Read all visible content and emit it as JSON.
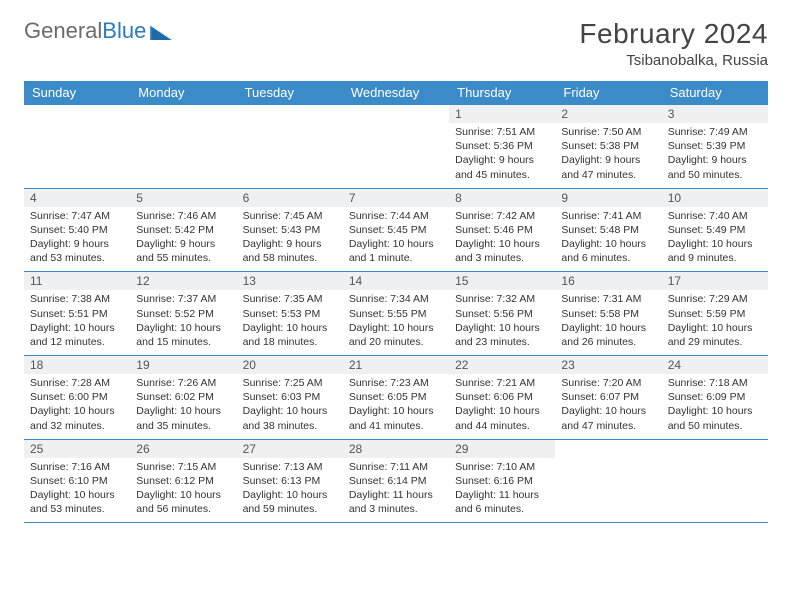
{
  "logo": {
    "textA": "General",
    "textB": "Blue",
    "triColor": "#2b7bbf",
    "grayColor": "#6b6b6b"
  },
  "title": "February 2024",
  "location": "Tsibanobalka, Russia",
  "colors": {
    "headerBg": "#3b8bc9",
    "border": "#3b8bc9",
    "dayStrip": "#eef0f1"
  },
  "dayHeaders": [
    "Sunday",
    "Monday",
    "Tuesday",
    "Wednesday",
    "Thursday",
    "Friday",
    "Saturday"
  ],
  "startOffset": 4,
  "days": [
    {
      "n": 1,
      "sr": "7:51 AM",
      "ss": "5:36 PM",
      "dl": "9 hours and 45 minutes."
    },
    {
      "n": 2,
      "sr": "7:50 AM",
      "ss": "5:38 PM",
      "dl": "9 hours and 47 minutes."
    },
    {
      "n": 3,
      "sr": "7:49 AM",
      "ss": "5:39 PM",
      "dl": "9 hours and 50 minutes."
    },
    {
      "n": 4,
      "sr": "7:47 AM",
      "ss": "5:40 PM",
      "dl": "9 hours and 53 minutes."
    },
    {
      "n": 5,
      "sr": "7:46 AM",
      "ss": "5:42 PM",
      "dl": "9 hours and 55 minutes."
    },
    {
      "n": 6,
      "sr": "7:45 AM",
      "ss": "5:43 PM",
      "dl": "9 hours and 58 minutes."
    },
    {
      "n": 7,
      "sr": "7:44 AM",
      "ss": "5:45 PM",
      "dl": "10 hours and 1 minute."
    },
    {
      "n": 8,
      "sr": "7:42 AM",
      "ss": "5:46 PM",
      "dl": "10 hours and 3 minutes."
    },
    {
      "n": 9,
      "sr": "7:41 AM",
      "ss": "5:48 PM",
      "dl": "10 hours and 6 minutes."
    },
    {
      "n": 10,
      "sr": "7:40 AM",
      "ss": "5:49 PM",
      "dl": "10 hours and 9 minutes."
    },
    {
      "n": 11,
      "sr": "7:38 AM",
      "ss": "5:51 PM",
      "dl": "10 hours and 12 minutes."
    },
    {
      "n": 12,
      "sr": "7:37 AM",
      "ss": "5:52 PM",
      "dl": "10 hours and 15 minutes."
    },
    {
      "n": 13,
      "sr": "7:35 AM",
      "ss": "5:53 PM",
      "dl": "10 hours and 18 minutes."
    },
    {
      "n": 14,
      "sr": "7:34 AM",
      "ss": "5:55 PM",
      "dl": "10 hours and 20 minutes."
    },
    {
      "n": 15,
      "sr": "7:32 AM",
      "ss": "5:56 PM",
      "dl": "10 hours and 23 minutes."
    },
    {
      "n": 16,
      "sr": "7:31 AM",
      "ss": "5:58 PM",
      "dl": "10 hours and 26 minutes."
    },
    {
      "n": 17,
      "sr": "7:29 AM",
      "ss": "5:59 PM",
      "dl": "10 hours and 29 minutes."
    },
    {
      "n": 18,
      "sr": "7:28 AM",
      "ss": "6:00 PM",
      "dl": "10 hours and 32 minutes."
    },
    {
      "n": 19,
      "sr": "7:26 AM",
      "ss": "6:02 PM",
      "dl": "10 hours and 35 minutes."
    },
    {
      "n": 20,
      "sr": "7:25 AM",
      "ss": "6:03 PM",
      "dl": "10 hours and 38 minutes."
    },
    {
      "n": 21,
      "sr": "7:23 AM",
      "ss": "6:05 PM",
      "dl": "10 hours and 41 minutes."
    },
    {
      "n": 22,
      "sr": "7:21 AM",
      "ss": "6:06 PM",
      "dl": "10 hours and 44 minutes."
    },
    {
      "n": 23,
      "sr": "7:20 AM",
      "ss": "6:07 PM",
      "dl": "10 hours and 47 minutes."
    },
    {
      "n": 24,
      "sr": "7:18 AM",
      "ss": "6:09 PM",
      "dl": "10 hours and 50 minutes."
    },
    {
      "n": 25,
      "sr": "7:16 AM",
      "ss": "6:10 PM",
      "dl": "10 hours and 53 minutes."
    },
    {
      "n": 26,
      "sr": "7:15 AM",
      "ss": "6:12 PM",
      "dl": "10 hours and 56 minutes."
    },
    {
      "n": 27,
      "sr": "7:13 AM",
      "ss": "6:13 PM",
      "dl": "10 hours and 59 minutes."
    },
    {
      "n": 28,
      "sr": "7:11 AM",
      "ss": "6:14 PM",
      "dl": "11 hours and 3 minutes."
    },
    {
      "n": 29,
      "sr": "7:10 AM",
      "ss": "6:16 PM",
      "dl": "11 hours and 6 minutes."
    }
  ],
  "labels": {
    "sunrise": "Sunrise:",
    "sunset": "Sunset:",
    "daylight": "Daylight:"
  }
}
